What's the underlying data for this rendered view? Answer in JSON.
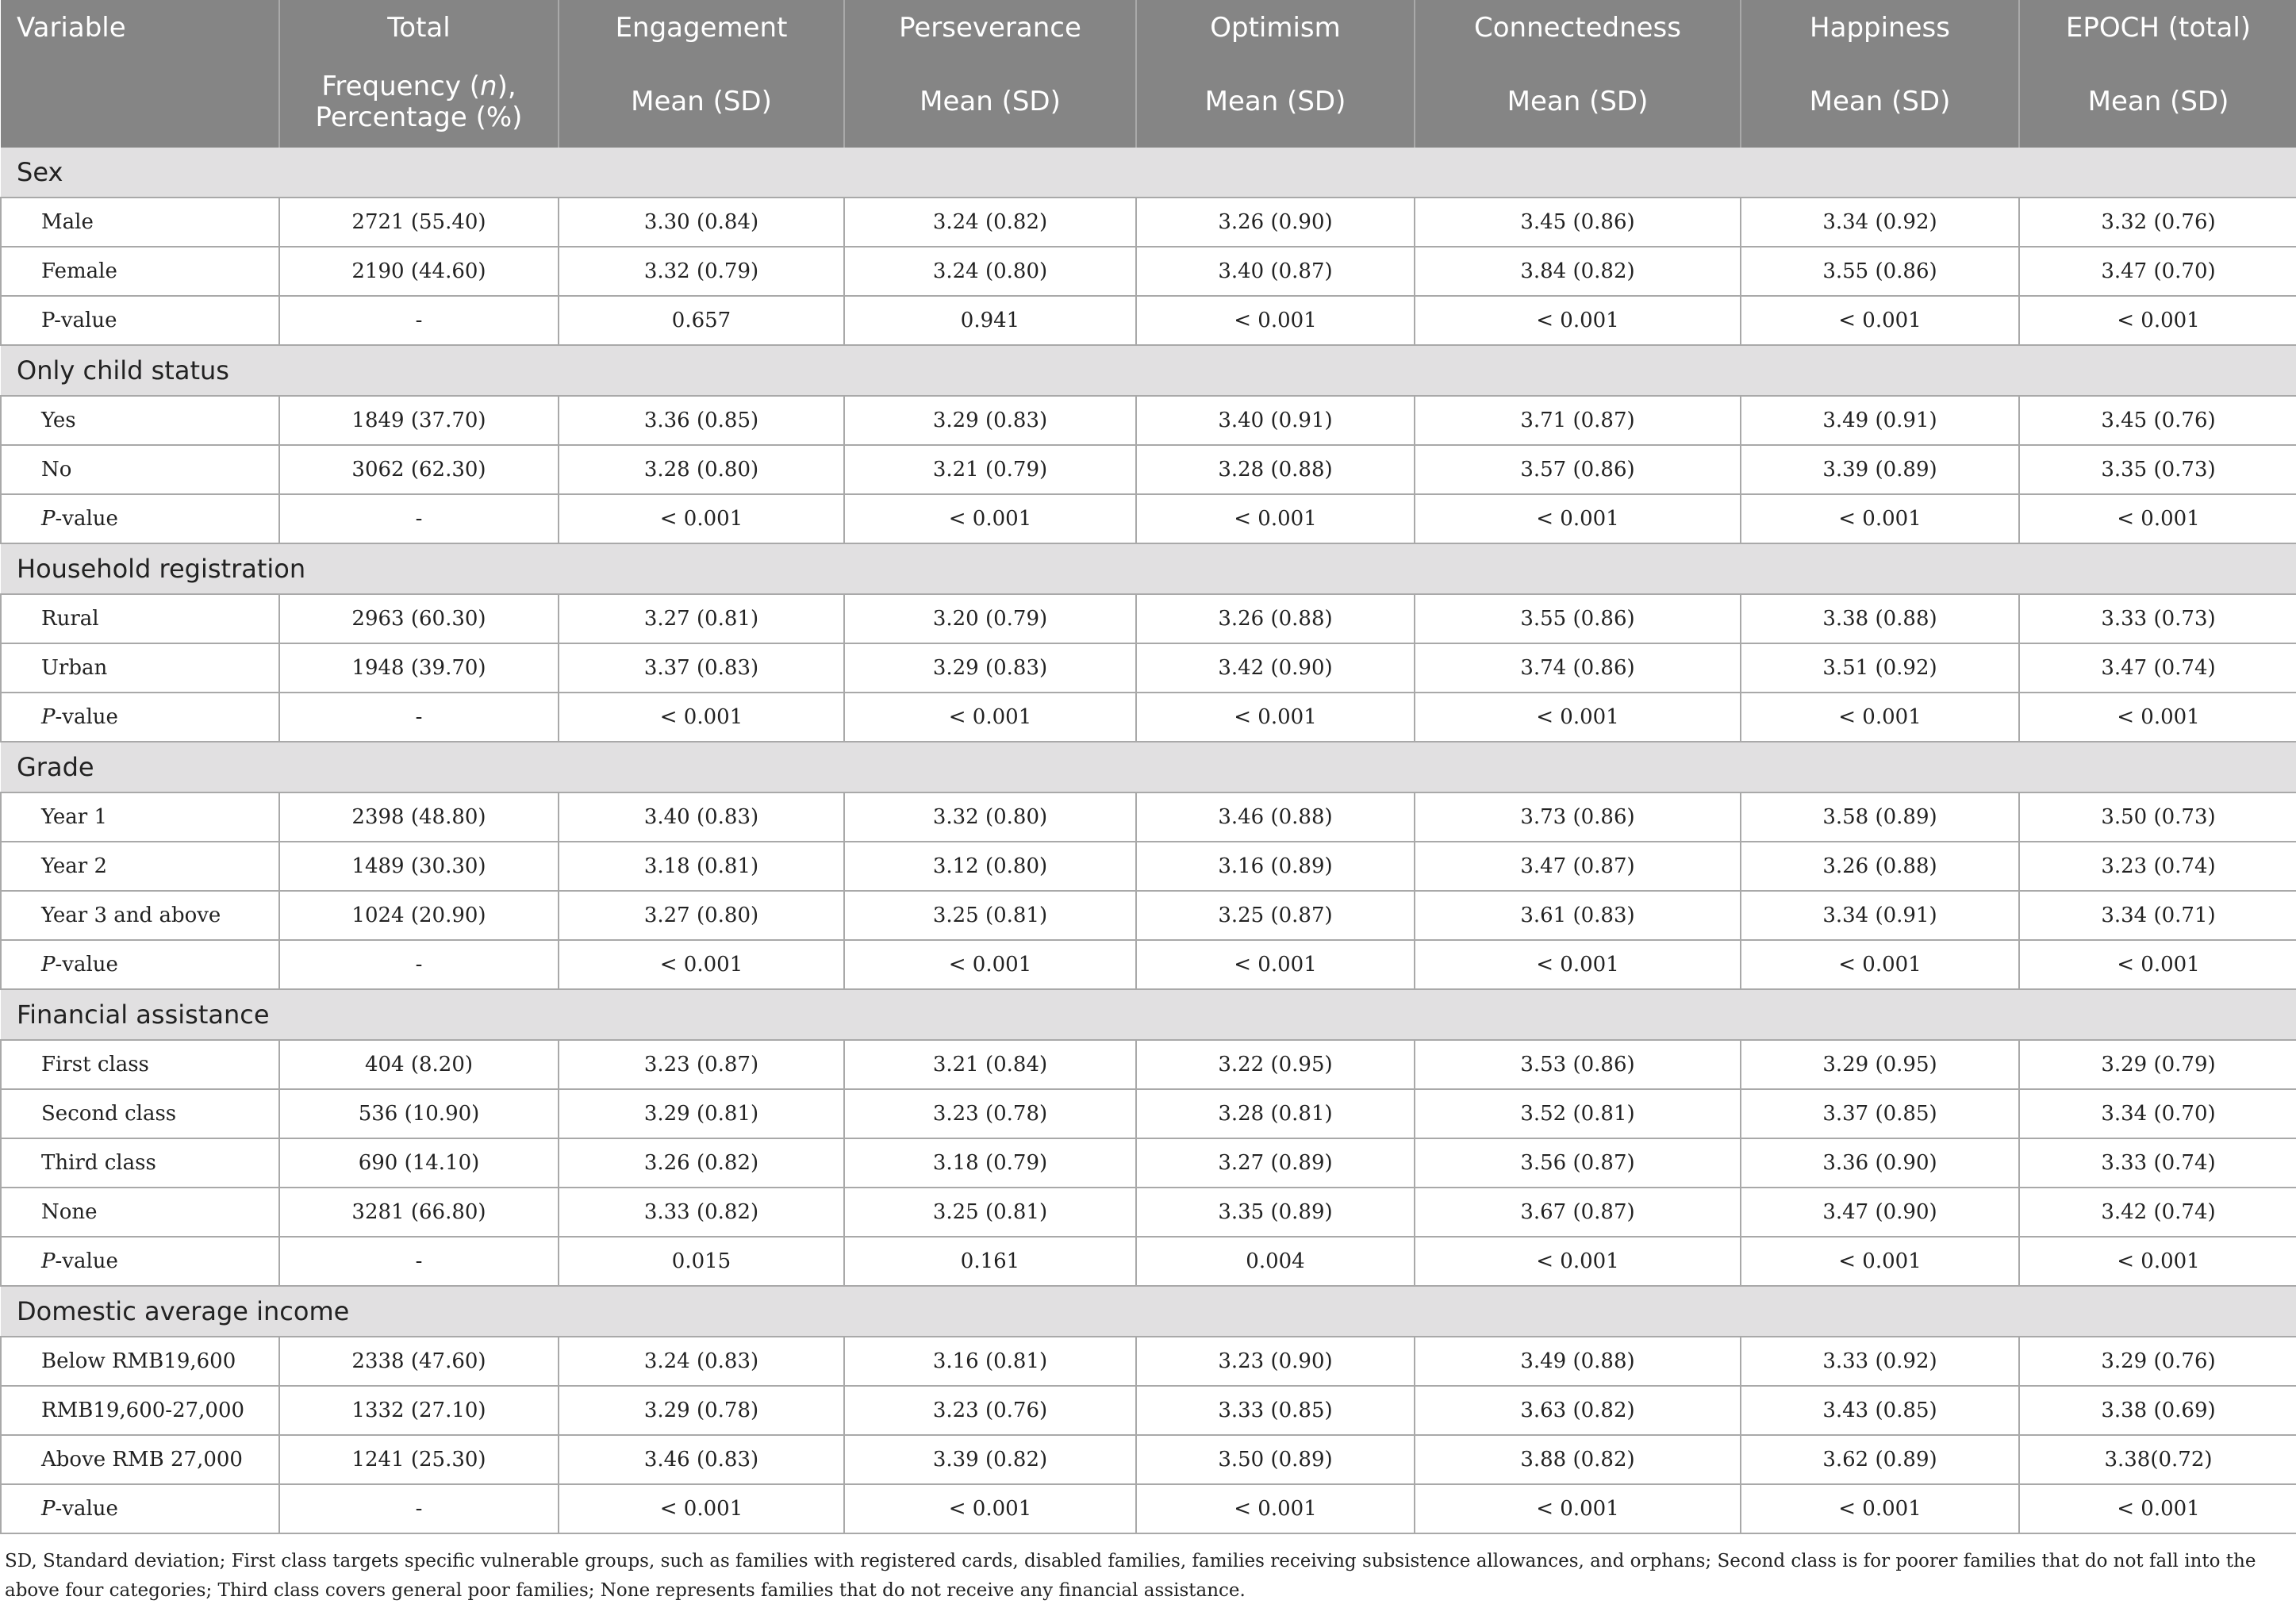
{
  "header": {
    "row1": [
      "Variable",
      "Total",
      "Engagement",
      "Perseverance",
      "Optimism",
      "Connectedness",
      "Happiness",
      "EPOCH (total)"
    ],
    "total_sub_a": "Frequency (",
    "total_sub_n": "n",
    "total_sub_b": "),",
    "total_sub_c": "Percentage (%)",
    "mean_sd": "Mean (SD)"
  },
  "sections": [
    {
      "title": "Sex",
      "rows": [
        {
          "label": "Male",
          "values": [
            "2721 (55.40)",
            "3.30 (0.84)",
            "3.24 (0.82)",
            "3.26 (0.90)",
            "3.45 (0.86)",
            "3.34 (0.92)",
            "3.32 (0.76)"
          ]
        },
        {
          "label": "Female",
          "values": [
            "2190 (44.60)",
            "3.32 (0.79)",
            "3.24 (0.80)",
            "3.40 (0.87)",
            "3.84 (0.82)",
            "3.55 (0.86)",
            "3.47 (0.70)"
          ]
        },
        {
          "label": "P-value",
          "italic_p": false,
          "values": [
            "-",
            "0.657",
            "0.941",
            "< 0.001",
            "< 0.001",
            "< 0.001",
            "< 0.001"
          ]
        }
      ]
    },
    {
      "title": "Only child status",
      "rows": [
        {
          "label": "Yes",
          "values": [
            "1849 (37.70)",
            "3.36 (0.85)",
            "3.29 (0.83)",
            "3.40 (0.91)",
            "3.71 (0.87)",
            "3.49 (0.91)",
            "3.45 (0.76)"
          ]
        },
        {
          "label": "No",
          "values": [
            "3062 (62.30)",
            "3.28 (0.80)",
            "3.21 (0.79)",
            "3.28 (0.88)",
            "3.57 (0.86)",
            "3.39 (0.89)",
            "3.35 (0.73)"
          ]
        },
        {
          "label": "P-value",
          "italic_p": true,
          "values": [
            "-",
            "< 0.001",
            "< 0.001",
            "< 0.001",
            "< 0.001",
            "< 0.001",
            "< 0.001"
          ]
        }
      ]
    },
    {
      "title": "Household registration",
      "rows": [
        {
          "label": "Rural",
          "values": [
            "2963 (60.30)",
            "3.27 (0.81)",
            "3.20 (0.79)",
            "3.26 (0.88)",
            "3.55 (0.86)",
            "3.38 (0.88)",
            "3.33 (0.73)"
          ]
        },
        {
          "label": "Urban",
          "values": [
            "1948 (39.70)",
            "3.37 (0.83)",
            "3.29 (0.83)",
            "3.42 (0.90)",
            "3.74 (0.86)",
            "3.51 (0.92)",
            "3.47 (0.74)"
          ]
        },
        {
          "label": "P-value",
          "italic_p": true,
          "values": [
            "-",
            "< 0.001",
            "< 0.001",
            "< 0.001",
            "< 0.001",
            "< 0.001",
            "< 0.001"
          ]
        }
      ]
    },
    {
      "title": "Grade",
      "rows": [
        {
          "label": "Year 1",
          "values": [
            "2398 (48.80)",
            "3.40 (0.83)",
            "3.32 (0.80)",
            "3.46 (0.88)",
            "3.73 (0.86)",
            "3.58 (0.89)",
            "3.50 (0.73)"
          ]
        },
        {
          "label": "Year 2",
          "values": [
            "1489 (30.30)",
            "3.18 (0.81)",
            "3.12 (0.80)",
            "3.16 (0.89)",
            "3.47 (0.87)",
            "3.26 (0.88)",
            "3.23 (0.74)"
          ]
        },
        {
          "label": "Year 3 and above",
          "values": [
            "1024 (20.90)",
            "3.27 (0.80)",
            "3.25 (0.81)",
            "3.25 (0.87)",
            "3.61 (0.83)",
            "3.34 (0.91)",
            "3.34 (0.71)"
          ]
        },
        {
          "label": "P-value",
          "italic_p": true,
          "values": [
            "-",
            "< 0.001",
            "< 0.001",
            "< 0.001",
            "< 0.001",
            "< 0.001",
            "< 0.001"
          ]
        }
      ]
    },
    {
      "title": "Financial assistance",
      "rows": [
        {
          "label": "First class",
          "values": [
            "404 (8.20)",
            "3.23 (0.87)",
            "3.21 (0.84)",
            "3.22 (0.95)",
            "3.53 (0.86)",
            "3.29 (0.95)",
            "3.29 (0.79)"
          ]
        },
        {
          "label": "Second class",
          "values": [
            "536 (10.90)",
            "3.29 (0.81)",
            "3.23 (0.78)",
            "3.28 (0.81)",
            "3.52 (0.81)",
            "3.37 (0.85)",
            "3.34 (0.70)"
          ]
        },
        {
          "label": "Third class",
          "values": [
            "690 (14.10)",
            "3.26 (0.82)",
            "3.18 (0.79)",
            "3.27 (0.89)",
            "3.56 (0.87)",
            "3.36 (0.90)",
            "3.33 (0.74)"
          ]
        },
        {
          "label": "None",
          "values": [
            "3281 (66.80)",
            "3.33 (0.82)",
            "3.25 (0.81)",
            "3.35 (0.89)",
            "3.67 (0.87)",
            "3.47 (0.90)",
            "3.42 (0.74)"
          ]
        },
        {
          "label": "P-value",
          "italic_p": true,
          "values": [
            "-",
            "0.015",
            "0.161",
            "0.004",
            "< 0.001",
            "< 0.001",
            "< 0.001"
          ]
        }
      ]
    },
    {
      "title": "Domestic average income",
      "rows": [
        {
          "label": "Below RMB19,600",
          "values": [
            "2338 (47.60)",
            "3.24 (0.83)",
            "3.16 (0.81)",
            "3.23 (0.90)",
            "3.49 (0.88)",
            "3.33 (0.92)",
            "3.29 (0.76)"
          ]
        },
        {
          "label": "RMB19,600-27,000",
          "values": [
            "1332 (27.10)",
            "3.29 (0.78)",
            "3.23 (0.76)",
            "3.33 (0.85)",
            "3.63 (0.82)",
            "3.43 (0.85)",
            "3.38 (0.69)"
          ]
        },
        {
          "label": "Above RMB 27,000",
          "values": [
            "1241 (25.30)",
            "3.46 (0.83)",
            "3.39 (0.82)",
            "3.50 (0.89)",
            "3.88 (0.82)",
            "3.62 (0.89)",
            "3.38(0.72)"
          ]
        },
        {
          "label": "P-value",
          "italic_p": true,
          "values": [
            "-",
            "< 0.001",
            "< 0.001",
            "< 0.001",
            "< 0.001",
            "< 0.001",
            "< 0.001"
          ]
        }
      ]
    }
  ],
  "footnote": "SD, Standard deviation; First class targets specific vulnerable groups, such as families with registered cards, disabled families, families receiving subsistence allowances, and orphans; Second class is for poorer families that do not fall into the above four categories; Third class covers general poor families; None represents families that do not receive any financial assistance."
}
